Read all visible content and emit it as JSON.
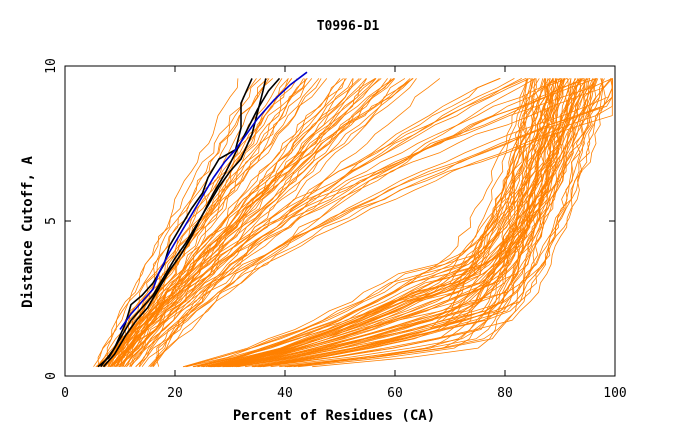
{
  "chart_data": {
    "type": "line",
    "title": "T0996-D1",
    "xlabel": "Percent of Residues (CA)",
    "ylabel": "Distance Cutoff, A",
    "xlim": [
      0,
      100
    ],
    "ylim": [
      0,
      10
    ],
    "x_ticks": [
      "0",
      "20",
      "40",
      "60",
      "80",
      "100"
    ],
    "y_ticks": [
      "0",
      "5",
      "10"
    ],
    "colors": {
      "background_models": "#ff8000",
      "highlight_black": "#000000",
      "highlight_blue": "#0000cc"
    },
    "highlight_series": [
      {
        "color": "#000000",
        "points": [
          [
            6,
            0.3
          ],
          [
            8,
            0.6
          ],
          [
            10,
            1.2
          ],
          [
            12,
            1.8
          ],
          [
            14,
            2.2
          ],
          [
            16,
            2.6
          ],
          [
            18,
            3.2
          ],
          [
            20,
            3.8
          ],
          [
            22,
            4.3
          ],
          [
            24,
            4.9
          ],
          [
            26,
            5.5
          ],
          [
            28,
            6.1
          ],
          [
            30,
            6.6
          ],
          [
            32,
            7.0
          ],
          [
            34,
            7.8
          ],
          [
            35,
            8.5
          ],
          [
            36,
            9.2
          ],
          [
            36.5,
            9.6
          ]
        ]
      },
      {
        "color": "#000000",
        "points": [
          [
            7,
            0.3
          ],
          [
            9,
            0.7
          ],
          [
            11,
            1.3
          ],
          [
            13,
            1.8
          ],
          [
            15,
            2.2
          ],
          [
            17,
            2.8
          ],
          [
            19,
            3.4
          ],
          [
            21,
            3.9
          ],
          [
            23,
            4.5
          ],
          [
            25,
            5.2
          ],
          [
            27,
            5.9
          ],
          [
            29,
            6.5
          ],
          [
            31,
            7.2
          ],
          [
            33,
            7.9
          ],
          [
            35,
            8.6
          ],
          [
            37,
            9.2
          ],
          [
            39,
            9.6
          ]
        ]
      },
      {
        "color": "#000000",
        "points": [
          [
            6.5,
            0.3
          ],
          [
            9,
            0.9
          ],
          [
            11,
            1.7
          ],
          [
            12,
            2.3
          ],
          [
            14,
            2.6
          ],
          [
            16,
            3.0
          ],
          [
            18,
            3.6
          ],
          [
            19,
            4.2
          ],
          [
            21,
            4.8
          ],
          [
            23,
            5.4
          ],
          [
            25,
            5.9
          ],
          [
            26,
            6.4
          ],
          [
            28,
            7.0
          ],
          [
            31,
            7.3
          ],
          [
            32,
            8.0
          ],
          [
            32,
            8.8
          ],
          [
            34,
            9.6
          ]
        ]
      },
      {
        "color": "#0000cc",
        "points": [
          [
            10,
            1.5
          ],
          [
            12,
            2.0
          ],
          [
            14,
            2.4
          ],
          [
            16,
            2.8
          ],
          [
            17,
            3.3
          ],
          [
            19,
            4.0
          ],
          [
            21,
            4.6
          ],
          [
            23,
            5.2
          ],
          [
            25,
            5.8
          ],
          [
            27,
            6.4
          ],
          [
            29,
            6.9
          ],
          [
            31,
            7.3
          ],
          [
            33,
            7.8
          ],
          [
            35,
            8.3
          ],
          [
            38,
            8.9
          ],
          [
            41,
            9.4
          ],
          [
            44,
            9.8
          ]
        ]
      }
    ]
  }
}
